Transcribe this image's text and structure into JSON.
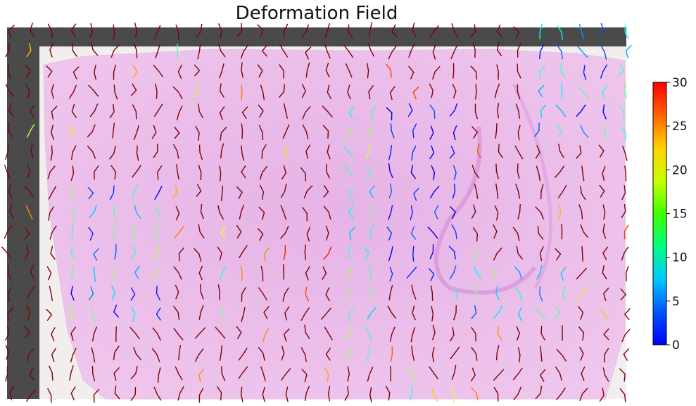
{
  "chart_data": {
    "type": "heatmap",
    "title": "Deformation Field",
    "xlabel": "",
    "ylabel": "",
    "background": "histology tissue section image (pink H&E stain) with dark padding at top and left edges",
    "field": "per-pixel deformation vectors drawn as short colored polyline glyphs on a regular grid",
    "colorbar": {
      "colormap": "jet",
      "range": [
        0,
        30
      ],
      "ticks": [
        0,
        5,
        10,
        15,
        20,
        25,
        30
      ],
      "tick_labels": [
        "0",
        "5",
        "10",
        "15",
        "20",
        "25",
        "30"
      ],
      "placement": "right"
    },
    "grid": {
      "columns": 30,
      "rows": 19
    },
    "magnitude_regions": [
      {
        "region": "upper-right band",
        "approx_value": 5
      },
      {
        "region": "central vertical band",
        "approx_value": 3
      },
      {
        "region": "left-center cluster",
        "approx_value": 6
      },
      {
        "region": "majority of field",
        "approx_value": 30
      }
    ]
  },
  "colors": {
    "padding": "#4a4a4a",
    "tissue": "#e9bde9",
    "tissue_edge": "#f1e8ee",
    "title": "#111111"
  }
}
